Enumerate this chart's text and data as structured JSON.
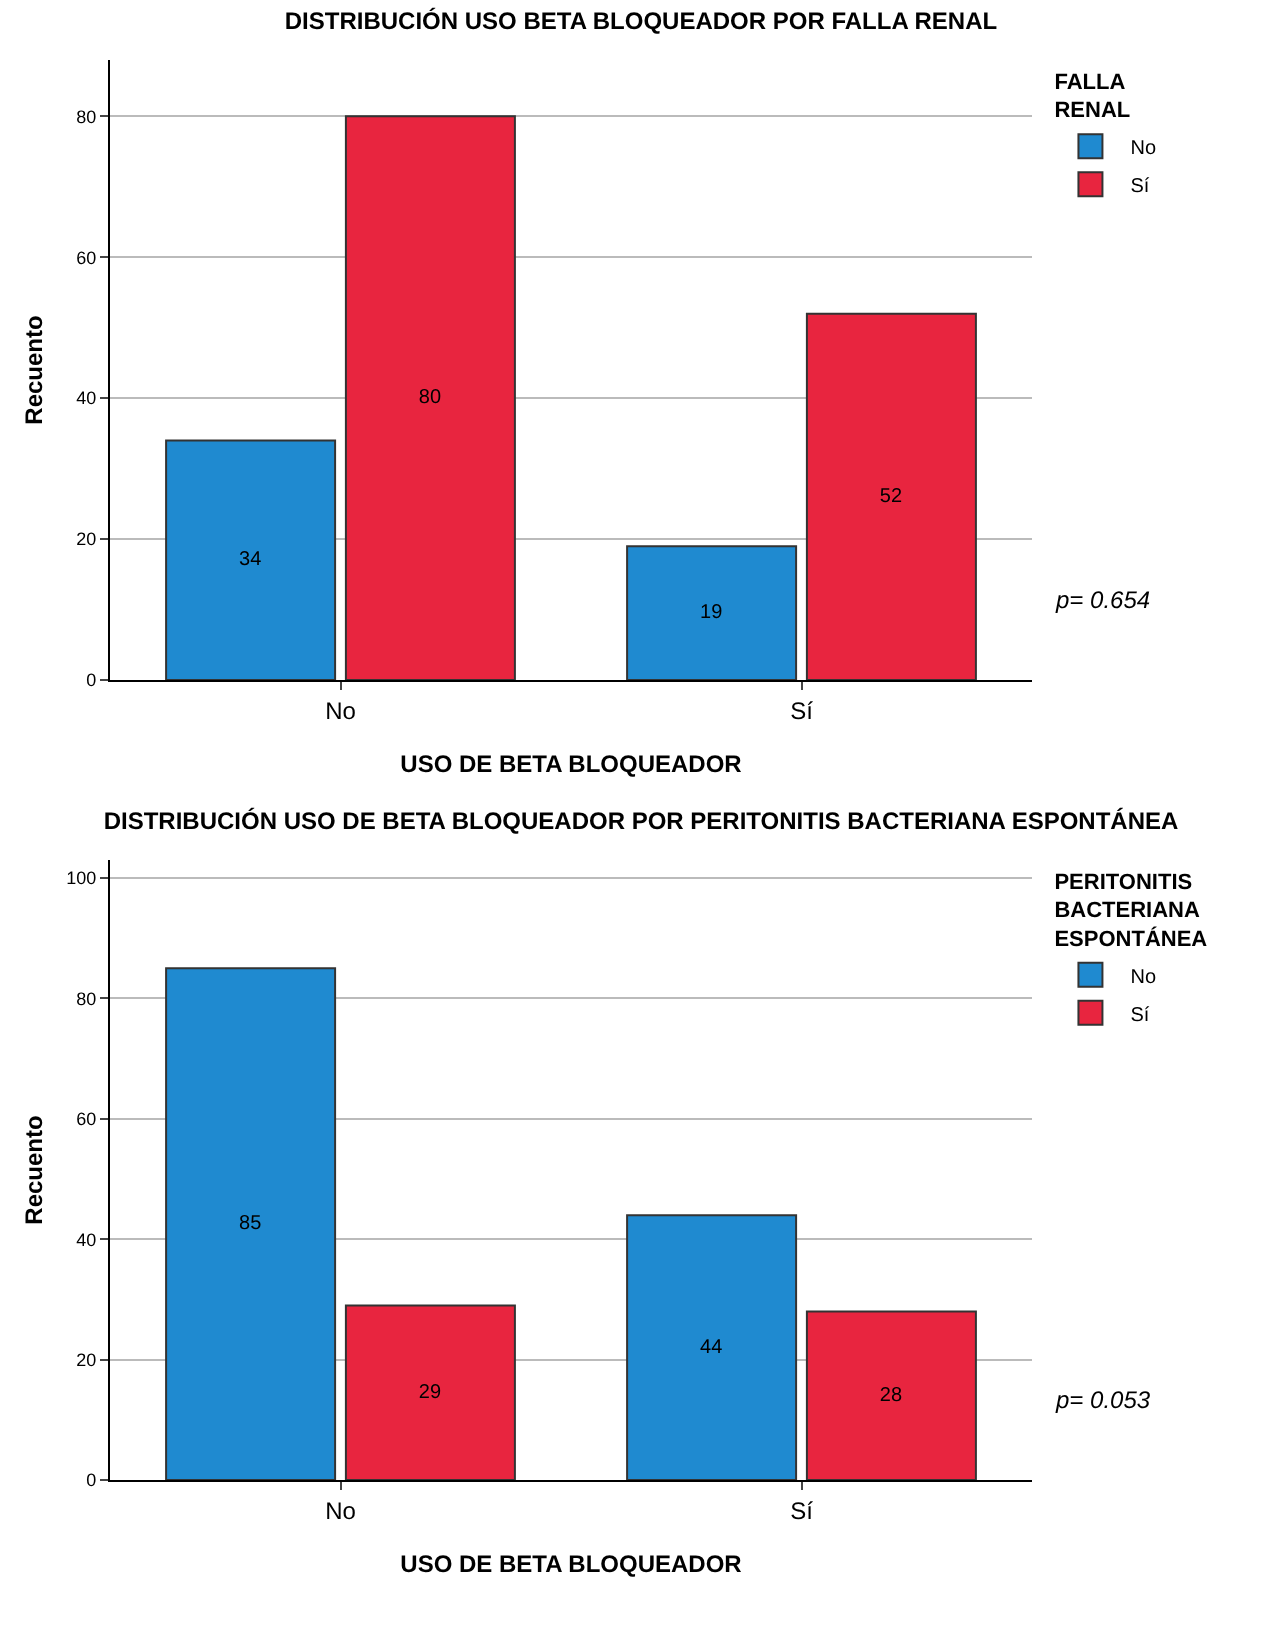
{
  "chart_data": [
    {
      "type": "bar",
      "title": "DISTRIBUCIÓN USO BETA BLOQUEADOR POR FALLA RENAL",
      "xlabel": "USO DE BETA BLOQUEADOR",
      "ylabel": "Recuento",
      "legend_title": "FALLA RENAL",
      "categories": [
        "No",
        "Sí"
      ],
      "series": [
        {
          "name": "No",
          "color": "#1f8ad0",
          "values": [
            34,
            19
          ]
        },
        {
          "name": "Sí",
          "color": "#e8253f",
          "values": [
            80,
            52
          ]
        }
      ],
      "ylim": [
        0,
        88
      ],
      "yticks": [
        0,
        20,
        40,
        60,
        80
      ],
      "grid": "y",
      "legend": "top right",
      "data_labels": true,
      "annotations": [
        "p= 0.654"
      ]
    },
    {
      "type": "bar",
      "title": "DISTRIBUCIÓN USO DE BETA BLOQUEADOR POR PERITONITIS BACTERIANA ESPONTÁNEA",
      "xlabel": "USO DE BETA BLOQUEADOR",
      "ylabel": "Recuento",
      "legend_title": "PERITONITIS BACTERIANA ESPONTÁNEA",
      "categories": [
        "No",
        "Sí"
      ],
      "series": [
        {
          "name": "No",
          "color": "#1f8ad0",
          "values": [
            85,
            44
          ]
        },
        {
          "name": "Sí",
          "color": "#e8253f",
          "values": [
            29,
            28
          ]
        }
      ],
      "ylim": [
        0,
        103
      ],
      "yticks": [
        0,
        20,
        40,
        60,
        80,
        100
      ],
      "grid": "y",
      "legend": "top right",
      "data_labels": true,
      "annotations": [
        "p= 0.053"
      ]
    }
  ]
}
